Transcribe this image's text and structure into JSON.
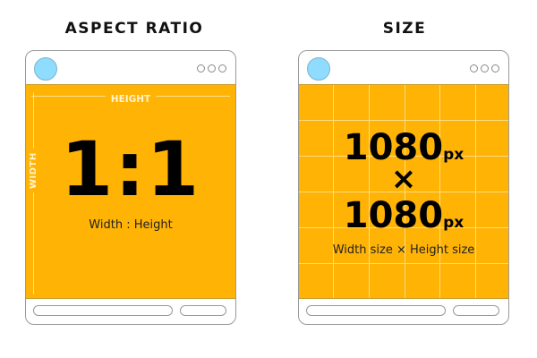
{
  "aspect_ratio": {
    "title": "ASPECT RATIO",
    "height_label": "HEIGHT",
    "width_label": "WIDTH",
    "ratio": "1:1",
    "caption": "Width : Height"
  },
  "size": {
    "title": "SIZE",
    "width_value": "1080",
    "height_value": "1080",
    "unit": "px",
    "times": "×",
    "caption": "Width size × Height size"
  },
  "colors": {
    "panel": "#ffb305",
    "avatar": "#8fdcff"
  }
}
